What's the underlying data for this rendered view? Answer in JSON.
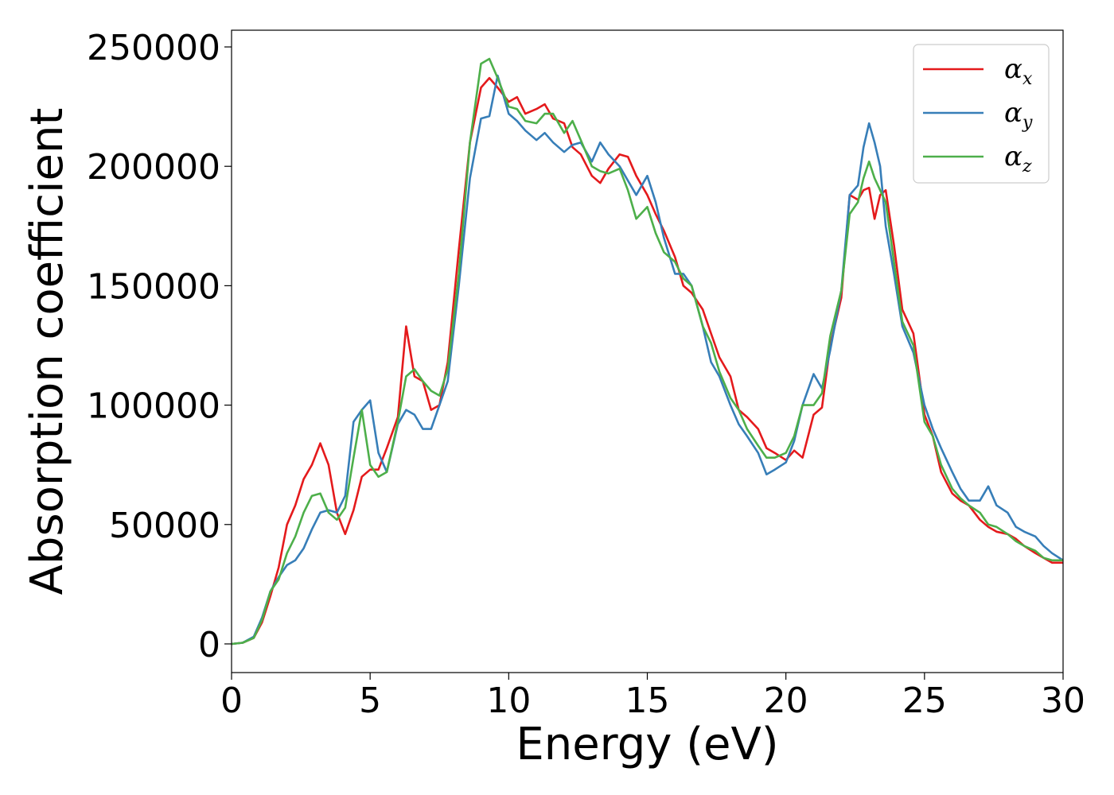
{
  "chart_data": {
    "type": "line",
    "title": "",
    "xlabel": "Energy (eV)",
    "ylabel": "Absorption coefficient",
    "xlim": [
      0,
      30
    ],
    "ylim": [
      -12000,
      257000
    ],
    "xticks": [
      0,
      5,
      10,
      15,
      20,
      25,
      30
    ],
    "yticks": [
      0,
      50000,
      100000,
      150000,
      200000,
      250000
    ],
    "xtick_labels": [
      "0",
      "5",
      "10",
      "15",
      "20",
      "25",
      "30"
    ],
    "ytick_labels": [
      "0",
      "50000",
      "100000",
      "150000",
      "200000",
      "250000"
    ],
    "grid": false,
    "legend_position": "top-right",
    "series": [
      {
        "name": "α",
        "subscript": "x",
        "color": "#e41a1c",
        "x": [
          0,
          0.4,
          0.8,
          1.1,
          1.4,
          1.7,
          2.0,
          2.3,
          2.6,
          2.9,
          3.2,
          3.5,
          3.8,
          4.1,
          4.4,
          4.7,
          5.0,
          5.3,
          5.6,
          6.0,
          6.3,
          6.6,
          6.9,
          7.2,
          7.5,
          7.8,
          8.2,
          8.6,
          9.0,
          9.3,
          9.6,
          10.0,
          10.3,
          10.6,
          11.0,
          11.3,
          11.6,
          12.0,
          12.3,
          12.6,
          13.0,
          13.3,
          13.6,
          14.0,
          14.3,
          14.6,
          15.0,
          15.3,
          15.6,
          16.0,
          16.3,
          16.6,
          17.0,
          17.3,
          17.6,
          18.0,
          18.3,
          18.6,
          19.0,
          19.3,
          19.6,
          20.0,
          20.3,
          20.6,
          21.0,
          21.3,
          21.6,
          22.0,
          22.3,
          22.6,
          22.8,
          23.0,
          23.2,
          23.4,
          23.6,
          23.9,
          24.2,
          24.6,
          25.0,
          25.3,
          25.6,
          26.0,
          26.3,
          26.6,
          27.0,
          27.3,
          27.6,
          28.0,
          28.3,
          28.6,
          29.0,
          29.3,
          29.6,
          30.0
        ],
        "y": [
          0,
          500,
          2500,
          9000,
          20000,
          32000,
          50000,
          58000,
          69000,
          75000,
          84000,
          75000,
          55000,
          46000,
          56000,
          70000,
          73000,
          73000,
          82000,
          95000,
          133000,
          112000,
          110000,
          98000,
          100000,
          118000,
          165000,
          210000,
          233000,
          237000,
          233000,
          227000,
          229000,
          222000,
          224000,
          226000,
          220000,
          218000,
          208000,
          205000,
          196000,
          193000,
          199000,
          205000,
          204000,
          196000,
          188000,
          180000,
          173000,
          162000,
          150000,
          147000,
          140000,
          130000,
          120000,
          112000,
          98000,
          95000,
          90000,
          82000,
          80000,
          77000,
          81000,
          78000,
          96000,
          99000,
          125000,
          145000,
          188000,
          186000,
          190000,
          191000,
          178000,
          188000,
          190000,
          167000,
          140000,
          130000,
          96000,
          87000,
          72000,
          63000,
          60000,
          58000,
          52000,
          49000,
          47000,
          46000,
          44000,
          41000,
          38000,
          36000,
          34000,
          34000
        ]
      },
      {
        "name": "α",
        "subscript": "y",
        "color": "#377eb8",
        "x": [
          0,
          0.4,
          0.8,
          1.1,
          1.4,
          1.7,
          2.0,
          2.3,
          2.6,
          2.9,
          3.2,
          3.5,
          3.8,
          4.1,
          4.4,
          4.7,
          5.0,
          5.3,
          5.6,
          6.0,
          6.3,
          6.6,
          6.9,
          7.2,
          7.5,
          7.8,
          8.2,
          8.6,
          9.0,
          9.3,
          9.6,
          10.0,
          10.3,
          10.6,
          11.0,
          11.3,
          11.6,
          12.0,
          12.3,
          12.6,
          13.0,
          13.3,
          13.6,
          14.0,
          14.3,
          14.6,
          15.0,
          15.3,
          15.6,
          16.0,
          16.3,
          16.6,
          17.0,
          17.3,
          17.6,
          18.0,
          18.3,
          18.6,
          19.0,
          19.3,
          19.6,
          20.0,
          20.3,
          20.6,
          21.0,
          21.3,
          21.6,
          22.0,
          22.3,
          22.6,
          22.8,
          23.0,
          23.2,
          23.4,
          23.6,
          23.9,
          24.2,
          24.6,
          25.0,
          25.3,
          25.6,
          26.0,
          26.3,
          26.6,
          27.0,
          27.3,
          27.6,
          28.0,
          28.3,
          28.6,
          29.0,
          29.3,
          29.6,
          30.0
        ],
        "y": [
          0,
          500,
          3000,
          11000,
          22000,
          28000,
          33000,
          35000,
          40000,
          48000,
          55000,
          56000,
          55000,
          62000,
          93000,
          98000,
          102000,
          80000,
          72000,
          92000,
          98000,
          96000,
          90000,
          90000,
          100000,
          110000,
          150000,
          195000,
          220000,
          221000,
          238000,
          222000,
          219000,
          215000,
          211000,
          214000,
          210000,
          206000,
          209000,
          210000,
          202000,
          210000,
          205000,
          200000,
          194000,
          188000,
          196000,
          185000,
          170000,
          155000,
          155000,
          150000,
          133000,
          118000,
          112000,
          100000,
          92000,
          87000,
          80000,
          71000,
          73000,
          76000,
          85000,
          100000,
          113000,
          107000,
          123000,
          148000,
          188000,
          192000,
          208000,
          218000,
          210000,
          200000,
          175000,
          155000,
          133000,
          122000,
          100000,
          90000,
          82000,
          72000,
          65000,
          60000,
          60000,
          66000,
          58000,
          55000,
          49000,
          47000,
          45000,
          41000,
          38000,
          35000
        ]
      },
      {
        "name": "α",
        "subscript": "z",
        "color": "#4daf4a",
        "x": [
          0,
          0.4,
          0.8,
          1.1,
          1.4,
          1.7,
          2.0,
          2.3,
          2.6,
          2.9,
          3.2,
          3.5,
          3.8,
          4.1,
          4.4,
          4.7,
          5.0,
          5.3,
          5.6,
          6.0,
          6.3,
          6.6,
          6.9,
          7.2,
          7.5,
          7.8,
          8.2,
          8.6,
          9.0,
          9.3,
          9.6,
          10.0,
          10.3,
          10.6,
          11.0,
          11.3,
          11.6,
          12.0,
          12.3,
          12.6,
          13.0,
          13.3,
          13.6,
          14.0,
          14.3,
          14.6,
          15.0,
          15.3,
          15.6,
          16.0,
          16.3,
          16.6,
          17.0,
          17.3,
          17.6,
          18.0,
          18.3,
          18.6,
          19.0,
          19.3,
          19.6,
          20.0,
          20.3,
          20.6,
          21.0,
          21.3,
          21.6,
          22.0,
          22.3,
          22.6,
          22.8,
          23.0,
          23.2,
          23.4,
          23.6,
          23.9,
          24.2,
          24.6,
          25.0,
          25.3,
          25.6,
          26.0,
          26.3,
          26.6,
          27.0,
          27.3,
          27.6,
          28.0,
          28.3,
          28.6,
          29.0,
          29.3,
          29.6,
          30.0
        ],
        "y": [
          0,
          500,
          2500,
          10000,
          22000,
          27000,
          38000,
          45000,
          55000,
          62000,
          63000,
          55000,
          52000,
          57000,
          78000,
          98000,
          75000,
          70000,
          72000,
          93000,
          112000,
          115000,
          110000,
          106000,
          104000,
          115000,
          155000,
          210000,
          243000,
          245000,
          237000,
          225000,
          224000,
          219000,
          218000,
          222000,
          222000,
          214000,
          219000,
          211000,
          200000,
          198000,
          197000,
          199000,
          190000,
          178000,
          183000,
          172000,
          164000,
          160000,
          153000,
          150000,
          133000,
          126000,
          114000,
          103000,
          98000,
          90000,
          83000,
          78000,
          78000,
          80000,
          87000,
          100000,
          100000,
          105000,
          129000,
          148000,
          180000,
          185000,
          195000,
          202000,
          195000,
          190000,
          185000,
          160000,
          135000,
          125000,
          93000,
          87000,
          75000,
          65000,
          61000,
          58000,
          55000,
          50000,
          49000,
          46000,
          43000,
          41000,
          39000,
          36000,
          35000,
          35000
        ]
      }
    ]
  }
}
